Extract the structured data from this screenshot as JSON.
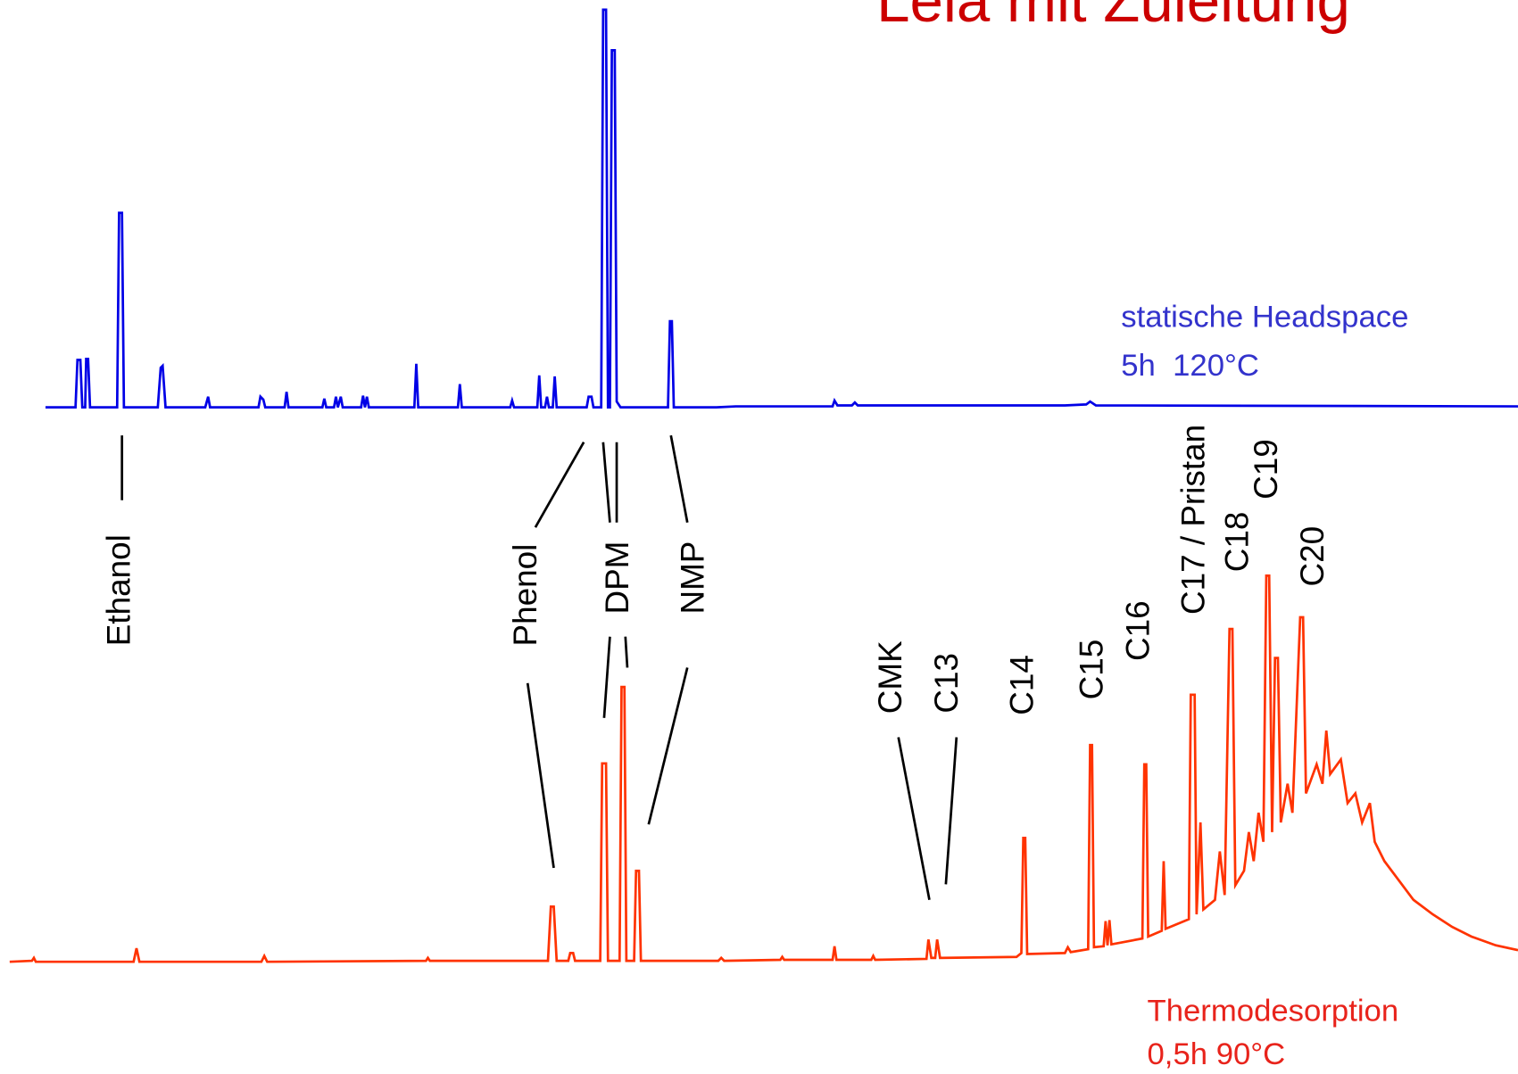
{
  "title": "Lela mit Zuleitung",
  "traces": [
    {
      "name": "statische Headspace",
      "condition": "5h  120°C"
    },
    {
      "name": "Thermodesorption",
      "condition": "0,5h 90°C"
    }
  ],
  "peak_labels": [
    "Ethanol",
    "Phenol",
    "DPM",
    "NMP",
    "CMK",
    "C13",
    "C14",
    "C15",
    "C16",
    "C17 / Pristan",
    "C18",
    "C19",
    "C20"
  ]
}
